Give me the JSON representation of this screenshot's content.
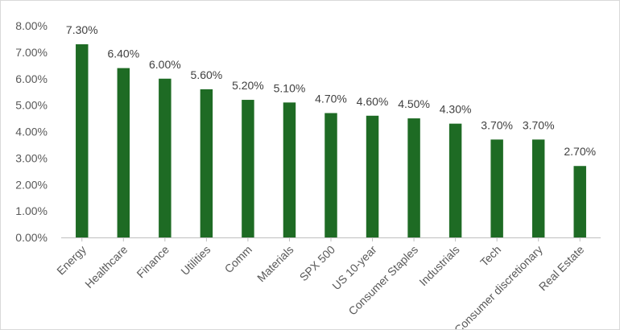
{
  "chart_data": {
    "type": "bar",
    "title": "",
    "xlabel": "",
    "ylabel": "",
    "categories": [
      "Energy",
      "Healthcare",
      "Finance",
      "Utilities",
      "Comm",
      "Materials",
      "SPX 500",
      "US 10-year",
      "Consumer Staples",
      "Industrials",
      "Tech",
      "Consumer discretionary",
      "Real Estate"
    ],
    "values": [
      7.3,
      6.4,
      6.0,
      5.6,
      5.2,
      5.1,
      4.7,
      4.6,
      4.5,
      4.3,
      3.7,
      3.7,
      2.7
    ],
    "value_labels": [
      "7.30%",
      "6.40%",
      "6.00%",
      "5.60%",
      "5.20%",
      "5.10%",
      "4.70%",
      "4.60%",
      "4.50%",
      "4.30%",
      "3.70%",
      "3.70%",
      "2.70%"
    ],
    "ylim": [
      0,
      8
    ],
    "yticks": [
      0,
      1,
      2,
      3,
      4,
      5,
      6,
      7,
      8
    ],
    "ytick_labels": [
      "0.00%",
      "1.00%",
      "2.00%",
      "3.00%",
      "4.00%",
      "5.00%",
      "6.00%",
      "7.00%",
      "8.00%"
    ],
    "grid": false,
    "legend": "none",
    "bar_color": "#1e6b24",
    "axis_color": "#bfbfbf"
  }
}
